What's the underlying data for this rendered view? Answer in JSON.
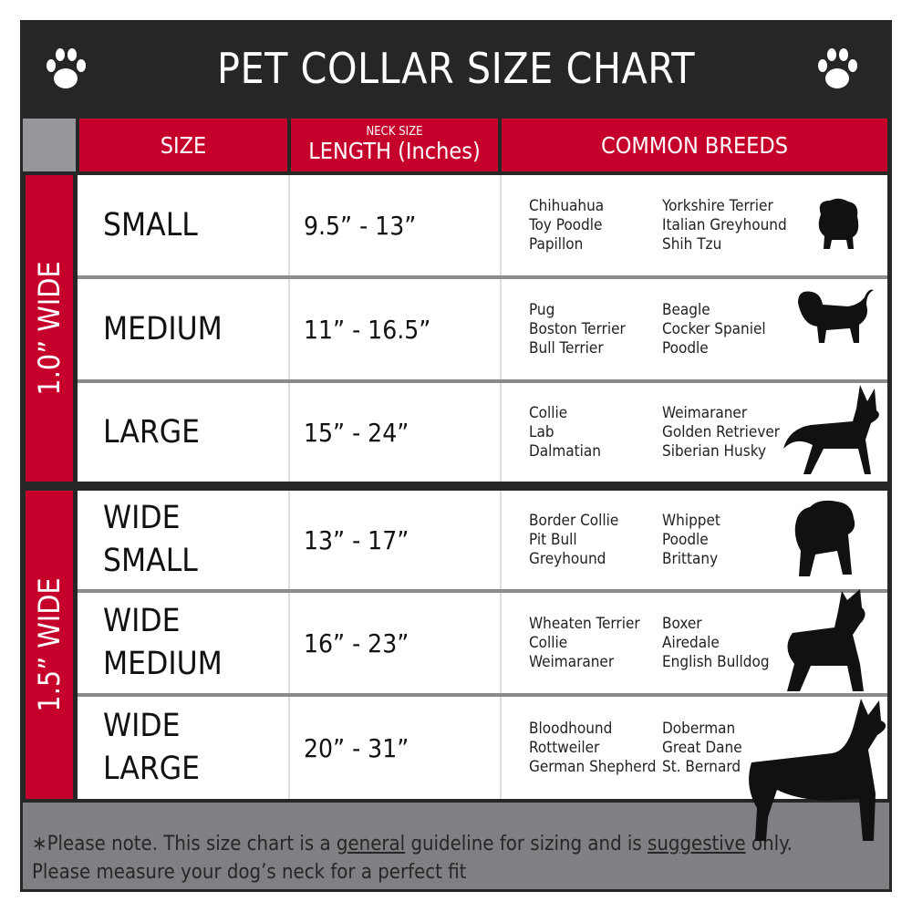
{
  "title": "PET COLLAR SIZE CHART",
  "icons": {
    "left": "paw-icon",
    "right": "paw-icon"
  },
  "colors": {
    "header_bg": "#262626",
    "accent_red": "#c4002b",
    "footer_gray": "#7f8083",
    "corner_gray": "#96979a"
  },
  "columns": {
    "size": "SIZE",
    "length_sup": "NECK SIZE",
    "length": "LENGTH (Inches)",
    "breeds": "COMMON BREEDS"
  },
  "groups": [
    {
      "label": "1.0” WIDE"
    },
    {
      "label": "1.5” WIDE"
    }
  ],
  "rows": [
    {
      "size": [
        "SMALL"
      ],
      "length": "9.5” - 13”",
      "breeds_a": [
        "Chihuahua",
        "Toy Poodle",
        "Papillon"
      ],
      "breeds_b": [
        "Yorkshire Terrier",
        "Italian Greyhound",
        "Shih Tzu"
      ],
      "icon": "small-dog-silhouette-icon"
    },
    {
      "size": [
        "MEDIUM"
      ],
      "length": "11” - 16.5”",
      "breeds_a": [
        "Pug",
        "Boston Terrier",
        "Bull Terrier"
      ],
      "breeds_b": [
        "Beagle",
        "Cocker Spaniel",
        "Poodle"
      ],
      "icon": "medium-dog-silhouette-icon"
    },
    {
      "size": [
        "LARGE"
      ],
      "length": "15” - 24”",
      "breeds_a": [
        "Collie",
        "Lab",
        "Dalmatian"
      ],
      "breeds_b": [
        "Weimaraner",
        "Golden Retriever",
        "Siberian Husky"
      ],
      "icon": "large-dog-silhouette-icon"
    },
    {
      "size": [
        "WIDE",
        "SMALL"
      ],
      "length": "13” - 17”",
      "breeds_a": [
        "Border Collie",
        "Pit Bull",
        "Greyhound"
      ],
      "breeds_b": [
        "Whippet",
        "Poodle",
        "Brittany"
      ],
      "icon": "bulldog-silhouette-icon"
    },
    {
      "size": [
        "WIDE",
        "MEDIUM"
      ],
      "length": "16” - 23”",
      "breeds_a": [
        "Wheaten Terrier",
        "Collie",
        "Weimaraner"
      ],
      "breeds_b": [
        "Boxer",
        "Airedale",
        "English Bulldog"
      ],
      "icon": "pitbull-silhouette-icon"
    },
    {
      "size": [
        "WIDE",
        "LARGE"
      ],
      "length": "20” - 31”",
      "breeds_a": [
        "Bloodhound",
        "Rottweiler",
        "German Shepherd"
      ],
      "breeds_b": [
        "Doberman",
        "Great Dane",
        "St. Bernard"
      ],
      "icon": "doberman-silhouette-icon"
    }
  ],
  "footer": {
    "p1": "∗Please note. This size chart is a ",
    "u1": "general",
    "p2": " guideline for sizing and is ",
    "u2": "suggestive",
    "p3": " only.",
    "line2": "Please measure your dog’s neck for a perfect fit"
  }
}
